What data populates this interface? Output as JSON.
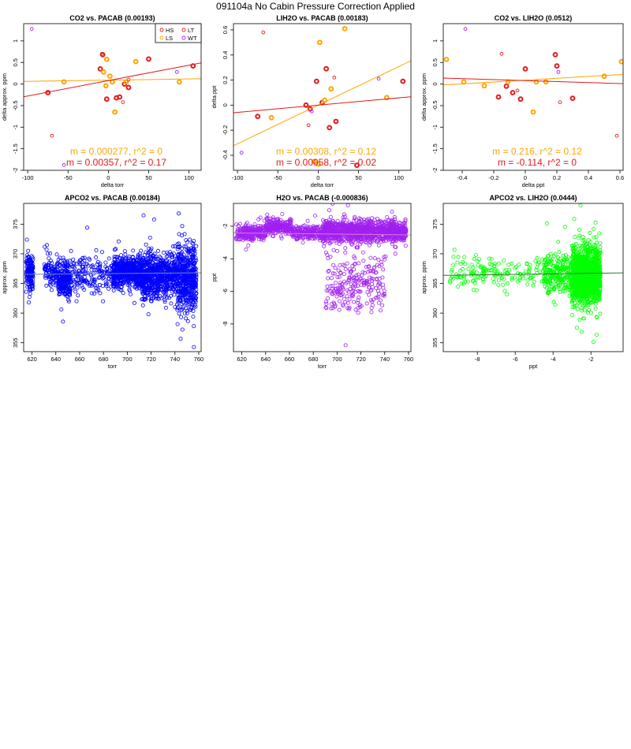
{
  "page": {
    "title": "091104a   No Cabin Pressure Correction Applied"
  },
  "colors": {
    "HS": "#e31a1c",
    "LS": "#ffa500",
    "LT": "#e31a1c",
    "WT": "#a020f0",
    "blue": "#0000ff",
    "purple": "#a020f0",
    "green": "#00ff00",
    "fit_red": "#e31a1c",
    "fit_orange": "#ffa500",
    "fit_gray": "#6a8aa8",
    "fit_green": "#2a7a2a"
  },
  "chart_data": [
    {
      "id": "co2-vs-pacab",
      "type": "scatter",
      "title": "CO2 vs. PACAB (0.00193)",
      "xlabel": "delta torr",
      "ylabel": "delta approx. ppm",
      "xlim": [
        -105,
        115
      ],
      "ylim": [
        -2.0,
        1.4
      ],
      "xticks": [
        -100,
        -50,
        0,
        50,
        100
      ],
      "yticks": [
        -2.0,
        -1.5,
        -1.0,
        -0.5,
        0.0,
        0.5,
        1.0
      ],
      "legend": {
        "placement": "top-right",
        "entries": [
          "HS",
          "LS",
          "LT",
          "WT"
        ]
      },
      "series": [
        {
          "name": "HS",
          "marker": "open-circle-thick",
          "color": "#e31a1c",
          "x": [
            -75,
            -10,
            -7,
            -2,
            10,
            14,
            20,
            25,
            50,
            105
          ],
          "y": [
            -0.2,
            0.35,
            0.68,
            -0.35,
            -0.32,
            -0.3,
            0.0,
            -0.08,
            0.58,
            0.42
          ]
        },
        {
          "name": "LS",
          "marker": "open-circle-thick",
          "color": "#ffa500",
          "x": [
            -55,
            -6,
            -3,
            -2,
            2,
            5,
            8,
            22,
            34,
            88
          ],
          "y": [
            0.05,
            0.28,
            -0.04,
            0.57,
            0.18,
            0.05,
            -0.65,
            0.05,
            0.52,
            0.05
          ]
        },
        {
          "name": "LT",
          "marker": "open-circle",
          "color": "#e31a1c",
          "x": [
            -70,
            -8,
            18,
            25
          ],
          "y": [
            -1.2,
            0.7,
            -0.42,
            0.1
          ]
        },
        {
          "name": "WT",
          "marker": "open-circle",
          "color": "#a020f0",
          "x": [
            -95,
            -55,
            85
          ],
          "y": [
            1.28,
            -1.88,
            0.28
          ]
        }
      ],
      "fits": [
        {
          "color": "#ffa500",
          "slope": 0.000277,
          "intercept": 0.09,
          "label": "m = 0.000277, r^2 = 0"
        },
        {
          "color": "#e31a1c",
          "slope": 0.00357,
          "intercept": 0.08,
          "label": "m = 0.00357, r^2 = 0.17"
        }
      ]
    },
    {
      "id": "lih2o-vs-pacab",
      "type": "scatter",
      "title": "LIH2O vs. PACAB (0.00183)",
      "xlabel": "delta torr",
      "ylabel": "delta ppt",
      "xlim": [
        -105,
        115
      ],
      "ylim": [
        -0.52,
        0.65
      ],
      "xticks": [
        -100,
        -50,
        0,
        50,
        100
      ],
      "yticks": [
        -0.4,
        -0.2,
        0.0,
        0.2,
        0.4,
        0.6
      ],
      "series": [
        {
          "name": "HS",
          "marker": "open-circle-thick",
          "color": "#e31a1c",
          "x": [
            -75,
            -15,
            -10,
            -2,
            5,
            10,
            14,
            22,
            48,
            105
          ],
          "y": [
            -0.09,
            0.0,
            -0.03,
            0.19,
            0.02,
            0.29,
            -0.18,
            -0.13,
            -0.48,
            0.19
          ]
        },
        {
          "name": "LS",
          "marker": "open-circle-thick",
          "color": "#ffa500",
          "x": [
            -58,
            -5,
            0,
            2,
            8,
            16,
            33,
            85
          ],
          "y": [
            -0.1,
            -0.45,
            -0.47,
            0.5,
            0.04,
            0.13,
            0.61,
            0.06
          ]
        },
        {
          "name": "LT",
          "marker": "open-circle",
          "color": "#e31a1c",
          "x": [
            -68,
            -12,
            20
          ],
          "y": [
            0.58,
            -0.16,
            0.22
          ]
        },
        {
          "name": "WT",
          "marker": "open-circle",
          "color": "#a020f0",
          "x": [
            -95,
            -8,
            75
          ],
          "y": [
            -0.38,
            -0.05,
            0.21
          ]
        }
      ],
      "fits": [
        {
          "color": "#ffa500",
          "slope": 0.00308,
          "intercept": 0.0,
          "label": "m = 0.00308, r^2 = 0.12"
        },
        {
          "color": "#e31a1c",
          "slope": 0.00058,
          "intercept": 0.0,
          "label": "m = 0.00058, r^2 = 0.02"
        }
      ]
    },
    {
      "id": "co2-vs-lih2o",
      "type": "scatter",
      "title": "CO2 vs. LIH2O (0.0512)",
      "xlabel": "delta ppt",
      "ylabel": "delta approx. ppm",
      "xlim": [
        -0.52,
        0.62
      ],
      "ylim": [
        -2.0,
        1.4
      ],
      "xticks": [
        -0.4,
        -0.2,
        0.0,
        0.2,
        0.4,
        0.6
      ],
      "yticks": [
        -2.0,
        -1.5,
        -1.0,
        -0.5,
        0.0,
        0.5,
        1.0
      ],
      "series": [
        {
          "name": "HS",
          "marker": "open-circle-thick",
          "color": "#e31a1c",
          "x": [
            -0.17,
            -0.12,
            -0.08,
            -0.03,
            0.0,
            0.19,
            0.2,
            0.3
          ],
          "y": [
            -0.3,
            -0.05,
            -0.2,
            -0.35,
            0.35,
            0.68,
            0.42,
            -0.33
          ]
        },
        {
          "name": "LS",
          "marker": "open-circle-thick",
          "color": "#ffa500",
          "x": [
            -0.5,
            -0.39,
            -0.26,
            -0.11,
            0.05,
            0.07,
            0.13,
            0.5,
            0.61
          ],
          "y": [
            0.57,
            0.05,
            -0.04,
            0.05,
            -0.65,
            0.05,
            0.05,
            0.18,
            0.52
          ]
        },
        {
          "name": "LT",
          "marker": "open-circle",
          "color": "#e31a1c",
          "x": [
            -0.15,
            -0.05,
            0.22,
            0.58
          ],
          "y": [
            0.7,
            -0.15,
            -0.42,
            -1.2
          ]
        },
        {
          "name": "WT",
          "marker": "open-circle",
          "color": "#a020f0",
          "x": [
            -0.38,
            0.21
          ],
          "y": [
            1.28,
            0.28
          ]
        }
      ],
      "fits": [
        {
          "color": "#ffa500",
          "slope": 0.216,
          "intercept": 0.09,
          "label": "m = 0.216, r^2 = 0.12"
        },
        {
          "color": "#e31a1c",
          "slope": -0.114,
          "intercept": 0.08,
          "label": "m = -0.114, r^2 = 0"
        }
      ]
    },
    {
      "id": "apco2-vs-pacab",
      "type": "scatter",
      "title": "APCO2 vs. PACAB (0.00184)",
      "xlabel": "torr",
      "ylabel": "approx. ppm",
      "xlim": [
        613,
        762
      ],
      "ylim": [
        353.5,
        378.5
      ],
      "xticks": [
        620,
        640,
        660,
        680,
        700,
        720,
        740,
        760
      ],
      "yticks": [
        355,
        360,
        365,
        370,
        375
      ],
      "point_color": "#0000ff",
      "dense_clusters": [
        {
          "x": [
            615,
            621
          ],
          "center": 367,
          "spread": 2.0,
          "count": 150
        },
        {
          "x": [
            630,
            642
          ],
          "center": 367,
          "spread": 1.5,
          "count": 100
        },
        {
          "x": [
            642,
            652
          ],
          "center": 365.5,
          "spread": 2.2,
          "count": 220
        },
        {
          "x": [
            652,
            688
          ],
          "center": 366.5,
          "spread": 2.0,
          "count": 180
        },
        {
          "x": [
            688,
            712
          ],
          "center": 367,
          "spread": 1.8,
          "count": 520
        },
        {
          "x": [
            712,
            726
          ],
          "center": 366,
          "spread": 2.8,
          "count": 340
        },
        {
          "x": [
            726,
            742
          ],
          "center": 366.5,
          "spread": 2.5,
          "count": 320
        },
        {
          "x": [
            742,
            758
          ],
          "center": 366,
          "spread": 3.8,
          "count": 480
        }
      ],
      "fits": [
        {
          "color": "#6a8aa8",
          "slope": 0.00184,
          "intercept": 365.4
        }
      ]
    },
    {
      "id": "h2o-vs-pacab",
      "type": "scatter",
      "title": "H2O vs. PACAB (-0.000836)",
      "xlabel": "torr",
      "ylabel": "ppt",
      "xlim": [
        613,
        762
      ],
      "ylim": [
        -9.7,
        -0.6
      ],
      "xticks": [
        620,
        640,
        660,
        680,
        700,
        720,
        740,
        760
      ],
      "yticks": [
        -8,
        -6,
        -4,
        -2
      ],
      "point_color": "#a020f0",
      "dense_clusters": [
        {
          "x": [
            615,
            640
          ],
          "center": -2.4,
          "spread": 0.35,
          "count": 220
        },
        {
          "x": [
            640,
            662
          ],
          "center": -2.0,
          "spread": 0.35,
          "count": 220
        },
        {
          "x": [
            662,
            688
          ],
          "center": -2.4,
          "spread": 0.3,
          "count": 200
        },
        {
          "x": [
            688,
            758
          ],
          "center": -2.3,
          "spread": 0.45,
          "count": 1100
        },
        {
          "x": [
            690,
            740
          ],
          "center": -5.5,
          "spread": 1.3,
          "count": 230
        }
      ],
      "fits": [
        {
          "color": "#e07ad8",
          "slope": -0.000836,
          "intercept": -1.9
        }
      ]
    },
    {
      "id": "apco2-vs-lih2o",
      "type": "scatter",
      "title": "APCO2 vs. LIH2O (0.0444)",
      "xlabel": "ppt",
      "ylabel": "approx. ppm",
      "xlim": [
        -9.8,
        -0.3
      ],
      "ylim": [
        353.5,
        378.5
      ],
      "xticks": [
        -8,
        -6,
        -4,
        -2
      ],
      "yticks": [
        355,
        360,
        365,
        370,
        375
      ],
      "point_color": "#00ff00",
      "dense_clusters": [
        {
          "x": [
            -9.5,
            -4.5
          ],
          "center": 367,
          "spread": 1.8,
          "count": 160
        },
        {
          "x": [
            -4.5,
            -3.0
          ],
          "center": 366.5,
          "spread": 2.3,
          "count": 250
        },
        {
          "x": [
            -3.0,
            -1.5
          ],
          "center": 366.5,
          "spread": 3.3,
          "count": 1300
        }
      ],
      "fits": [
        {
          "color": "#2a7a2a",
          "slope": 0.0444,
          "intercept": 366.8
        }
      ]
    }
  ]
}
